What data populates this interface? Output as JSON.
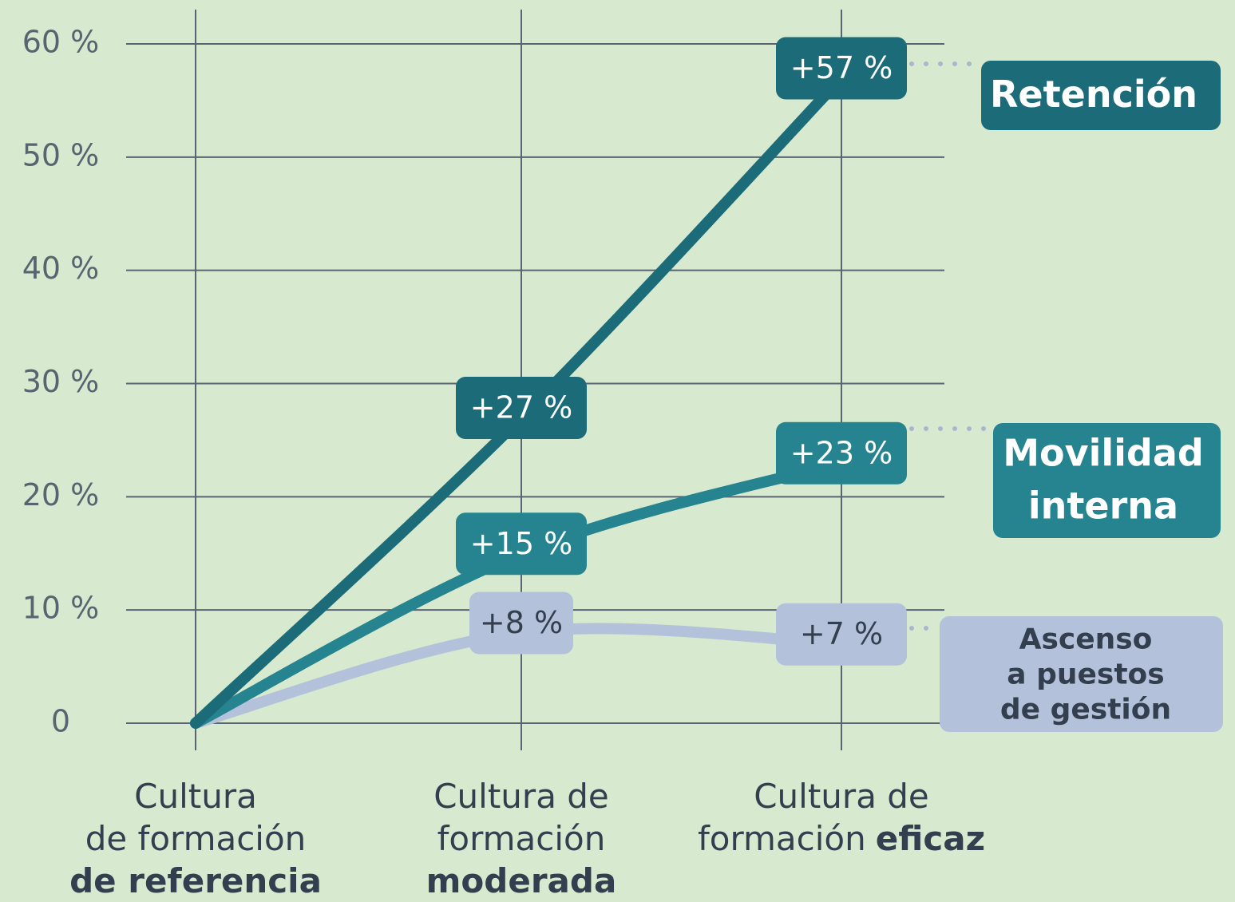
{
  "chart_data": {
    "type": "line",
    "categories": [
      [
        [
          "Cultura"
        ],
        [
          "de formación"
        ],
        [
          "de referencia"
        ]
      ],
      [
        [
          "Cultura de"
        ],
        [
          "formación"
        ],
        [
          "moderada"
        ]
      ],
      [
        [
          "Cultura de"
        ],
        [
          "formación",
          "eficaz"
        ]
      ]
    ],
    "series": [
      {
        "name": [
          "Retención"
        ],
        "color": "#1c6b78",
        "label_text_color": "#ffffff",
        "values": [
          0,
          27,
          57
        ],
        "value_labels": [
          null,
          "+27 %",
          "+57 %"
        ]
      },
      {
        "name": [
          "Movilidad",
          "interna"
        ],
        "color": "#25848f",
        "label_text_color": "#ffffff",
        "values": [
          0,
          15,
          23
        ],
        "value_labels": [
          null,
          "+15 %",
          "+23 %"
        ]
      },
      {
        "name": [
          "Ascenso",
          "a puestos",
          "de gestión"
        ],
        "color": "#b3c2da",
        "label_text_color": "#333f4f",
        "values": [
          0,
          8,
          7
        ],
        "value_labels": [
          null,
          "+8 %",
          "+7 %"
        ]
      }
    ],
    "ylim": [
      0,
      60
    ],
    "yticks": [
      0,
      {
        "value": 10,
        "label": "10 %"
      },
      {
        "value": 20,
        "label": "20 %"
      },
      {
        "value": 30,
        "label": "30 %"
      },
      {
        "value": 40,
        "label": "40 %"
      },
      {
        "value": 50,
        "label": "50 %"
      },
      {
        "value": 60,
        "label": "60 %"
      }
    ],
    "grid": true
  }
}
